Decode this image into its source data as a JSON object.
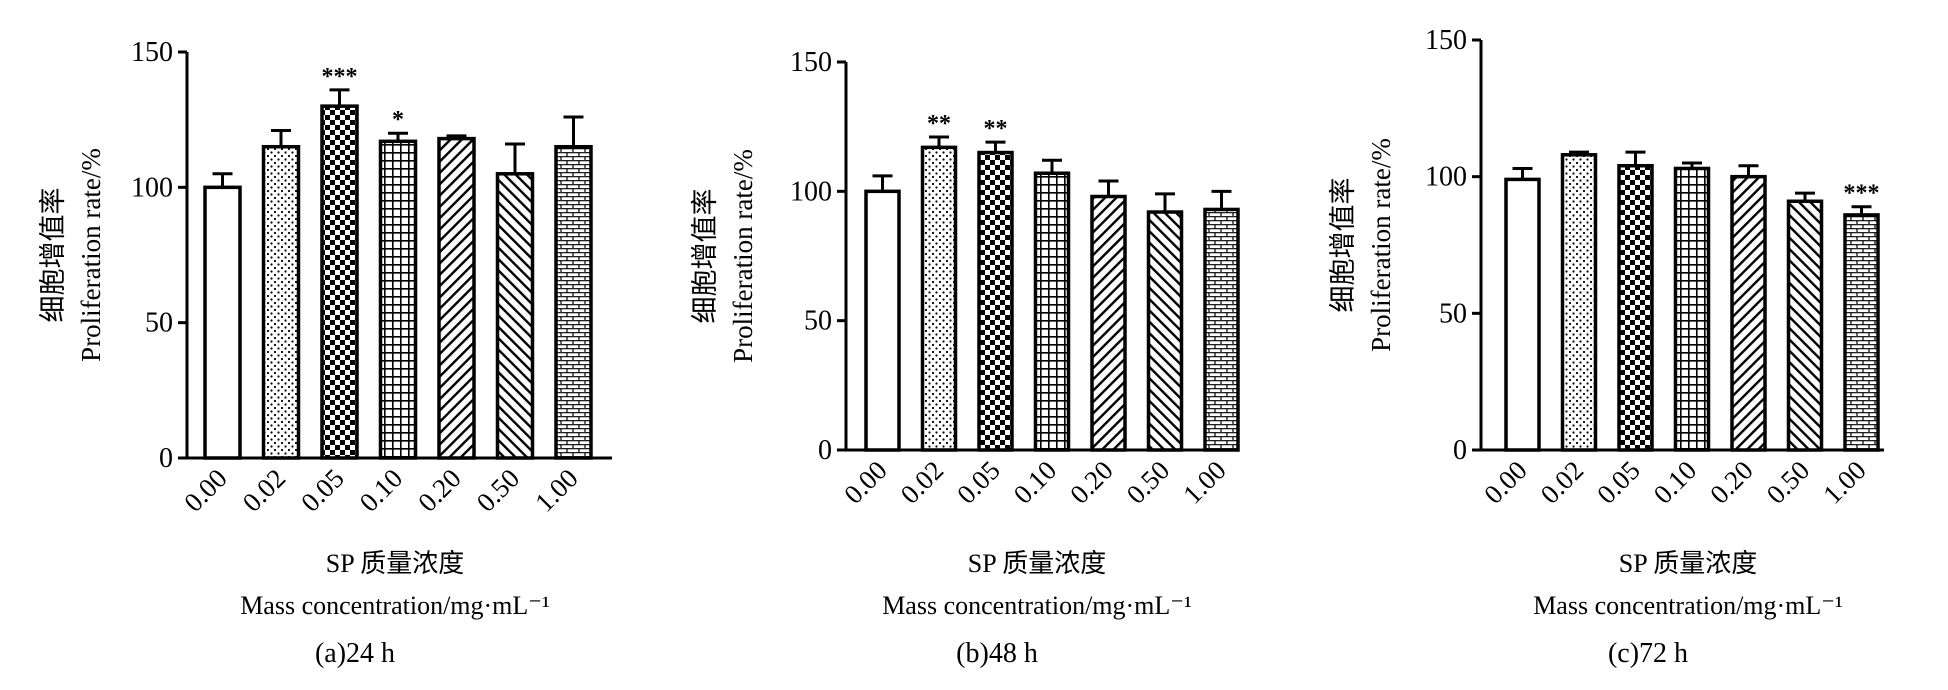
{
  "chart_data": [
    {
      "type": "bar",
      "caption": "(a)24 h",
      "ylabel_cn": "细胞增值率",
      "ylabel_en": "Proliferation  rate/%",
      "xlabel_cn": "SP 质量浓度",
      "xlabel_en": "Mass  concentration/mg·mL⁻¹",
      "categories": [
        "0.00",
        "0.02",
        "0.05",
        "0.10",
        "0.20",
        "0.50",
        "1.00"
      ],
      "values": [
        100,
        115,
        130,
        117,
        118,
        105,
        115
      ],
      "errors": [
        5,
        6,
        6,
        3,
        1,
        11,
        11
      ],
      "significance": [
        "",
        "",
        "***",
        "*",
        "",
        "",
        ""
      ],
      "yticks": [
        "0",
        "50",
        "100",
        "150"
      ],
      "ylim": [
        0,
        150
      ],
      "patterns": [
        "none",
        "dots",
        "checker",
        "grid",
        "diag-right",
        "diag-left",
        "brick"
      ]
    },
    {
      "type": "bar",
      "caption": "(b)48 h",
      "ylabel_cn": "细胞增值率",
      "ylabel_en": "Proliferation  rate/%",
      "xlabel_cn": "SP 质量浓度",
      "xlabel_en": "Mass  concentration/mg·mL⁻¹",
      "categories": [
        "0.00",
        "0.02",
        "0.05",
        "0.10",
        "0.20",
        "0.50",
        "1.00"
      ],
      "values": [
        100,
        117,
        115,
        107,
        98,
        92,
        93
      ],
      "errors": [
        6,
        4,
        4,
        5,
        6,
        7,
        7
      ],
      "significance": [
        "",
        "**",
        "**",
        "",
        "",
        "",
        ""
      ],
      "yticks": [
        "0",
        "50",
        "100",
        "150"
      ],
      "ylim": [
        0,
        150
      ],
      "patterns": [
        "none",
        "dots",
        "checker",
        "grid",
        "diag-right",
        "diag-left",
        "brick"
      ]
    },
    {
      "type": "bar",
      "caption": "(c)72 h",
      "ylabel_cn": "细胞增值率",
      "ylabel_en": "Proliferation  rate/%",
      "xlabel_cn": "SP 质量浓度",
      "xlabel_en": "Mass  concentration/mg·mL⁻¹",
      "categories": [
        "0.00",
        "0.02",
        "0.05",
        "0.10",
        "0.20",
        "0.50",
        "1.00"
      ],
      "values": [
        99,
        108,
        104,
        103,
        100,
        91,
        86
      ],
      "errors": [
        4,
        1,
        5,
        2,
        4,
        3,
        3
      ],
      "significance": [
        "",
        "",
        "",
        "",
        "",
        "",
        "***"
      ],
      "yticks": [
        "0",
        "50",
        "100",
        "150"
      ],
      "ylim": [
        0,
        150
      ],
      "patterns": [
        "none",
        "dots",
        "checker",
        "grid",
        "diag-right",
        "diag-left",
        "brick"
      ]
    }
  ]
}
